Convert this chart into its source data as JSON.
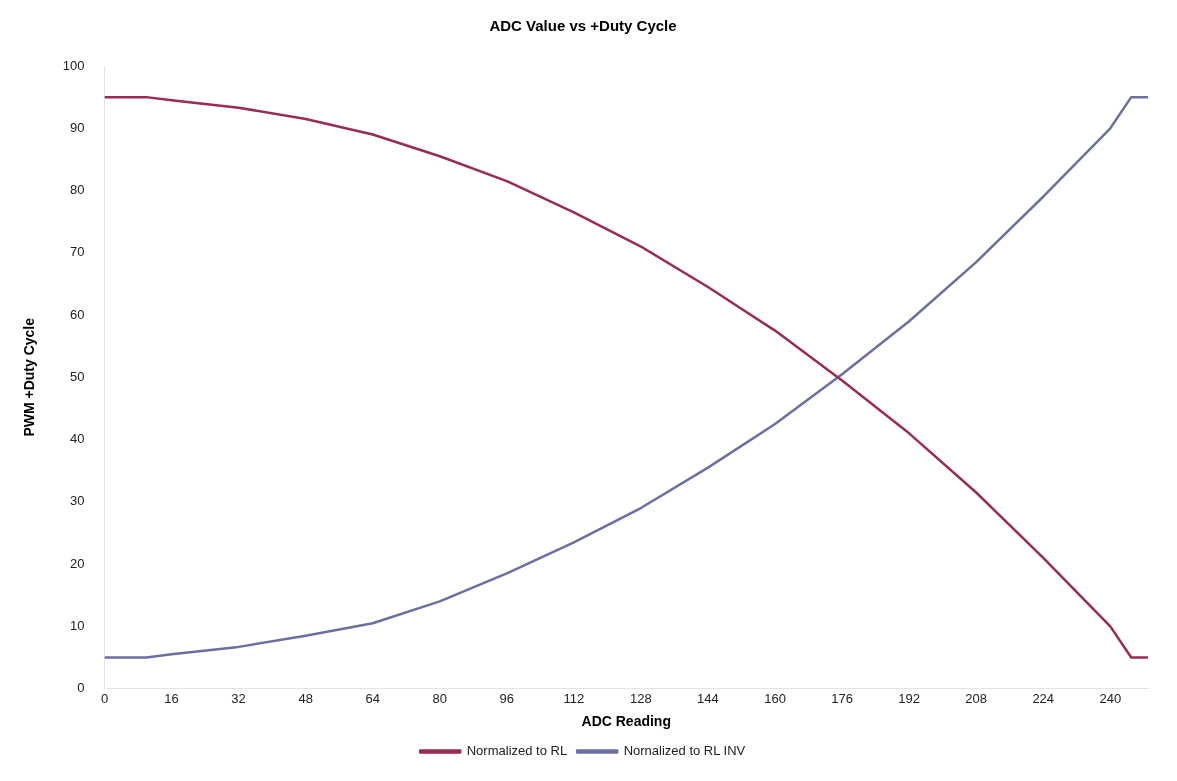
{
  "chart_data": {
    "type": "line",
    "title": "ADC Value vs +Duty Cycle",
    "xlabel": "ADC Reading",
    "ylabel": "PWM +Duty Cycle",
    "x": [
      0,
      10,
      16,
      32,
      48,
      64,
      80,
      96,
      112,
      128,
      144,
      160,
      176,
      192,
      208,
      224,
      240,
      245,
      249
    ],
    "series": [
      {
        "name": "Normalized to RL",
        "color": "#9b2d4c",
        "values": [
          95,
          95,
          94.5,
          93.3,
          91.5,
          89,
          85.5,
          81.5,
          76.5,
          71,
          64.5,
          57.5,
          49.5,
          41,
          31.5,
          21,
          10,
          5,
          5
        ]
      },
      {
        "name": "Nornalized to RL INV",
        "color": "#6b6fa3",
        "values": [
          5,
          5,
          5.5,
          6.7,
          8.5,
          10.5,
          14,
          18.5,
          23.5,
          29,
          35.5,
          42.5,
          50.5,
          59,
          68.5,
          79,
          90,
          95,
          95
        ]
      }
    ],
    "xlim": [
      0,
      249
    ],
    "xticks": [
      0,
      16,
      32,
      48,
      64,
      80,
      96,
      112,
      128,
      144,
      160,
      176,
      192,
      208,
      224,
      240
    ],
    "ylim": [
      0,
      100
    ],
    "yticks": [
      0,
      10,
      20,
      30,
      40,
      50,
      60,
      70,
      80,
      90,
      100
    ],
    "grid": false,
    "legend": "bottom",
    "marker": "none",
    "line_style": "solid"
  }
}
